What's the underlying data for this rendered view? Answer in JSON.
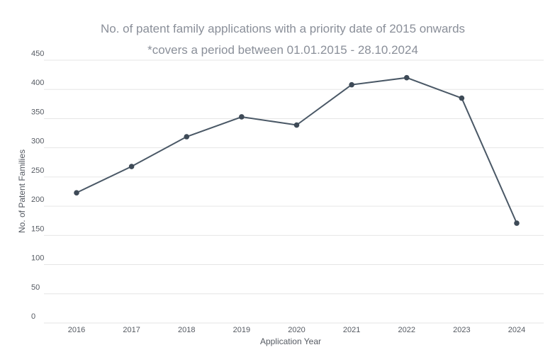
{
  "chart_data": {
    "type": "line",
    "title": "No. of patent family applications with a priority date of 2015 onwards",
    "subtitle": "*covers a period between 01.01.2015 - 28.10.2024",
    "xlabel": "Application Year",
    "ylabel": "No. of Patent Families",
    "categories": [
      "2016",
      "2017",
      "2018",
      "2019",
      "2020",
      "2021",
      "2022",
      "2023",
      "2024"
    ],
    "series": [
      {
        "values": [
          223,
          268,
          319,
          353,
          339,
          408,
          420,
          385,
          171
        ]
      }
    ],
    "ylim": [
      0,
      450
    ],
    "yticks": [
      0,
      50,
      100,
      150,
      200,
      250,
      300,
      350,
      400,
      450
    ],
    "grid": true,
    "legend": "none",
    "colors": {
      "line": "#4a5866",
      "marker": "#3e4a57",
      "grid": "#e6e6e6",
      "title": "#8a8f99",
      "text": "#555a62"
    }
  }
}
